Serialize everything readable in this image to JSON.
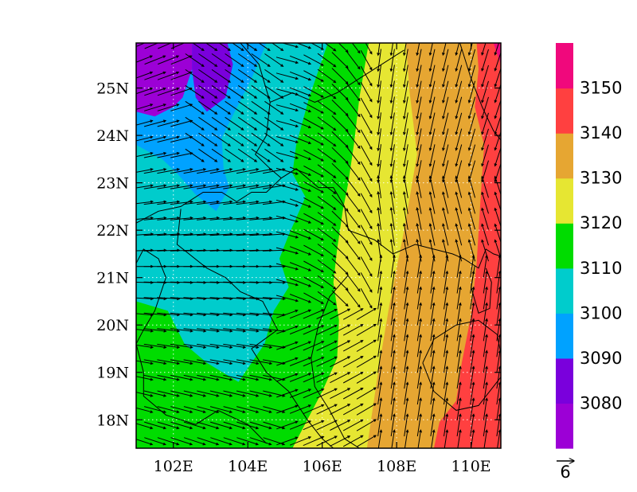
{
  "chart_data": {
    "type": "heatmap",
    "title": "",
    "xlabel": "",
    "ylabel": "",
    "xlim": [
      101.0,
      110.8
    ],
    "ylim": [
      17.4,
      25.95
    ],
    "x_ticks": [
      102,
      104,
      106,
      108,
      110
    ],
    "x_tick_labels": [
      "102E",
      "104E",
      "106E",
      "108E",
      "110E"
    ],
    "y_ticks": [
      18,
      19,
      20,
      21,
      22,
      23,
      24,
      25
    ],
    "y_tick_labels": [
      "18N",
      "19N",
      "20N",
      "21N",
      "22N",
      "23N",
      "24N",
      "25N"
    ],
    "grid": "dotted",
    "colorbar": {
      "placement": "right",
      "colors": [
        "#9c00d6",
        "#7a00dc",
        "#00a2ff",
        "#00cccc",
        "#00dc00",
        "#e6e632",
        "#e6a632",
        "#ff4040",
        "#f0087c"
      ],
      "levels": [
        3080,
        3090,
        3100,
        3110,
        3120,
        3130,
        3140,
        3150
      ],
      "labels": [
        "3080",
        "3090",
        "3100",
        "3110",
        "3120",
        "3130",
        "3140",
        "3150"
      ]
    },
    "vector_reference": {
      "label": "6"
    }
  }
}
